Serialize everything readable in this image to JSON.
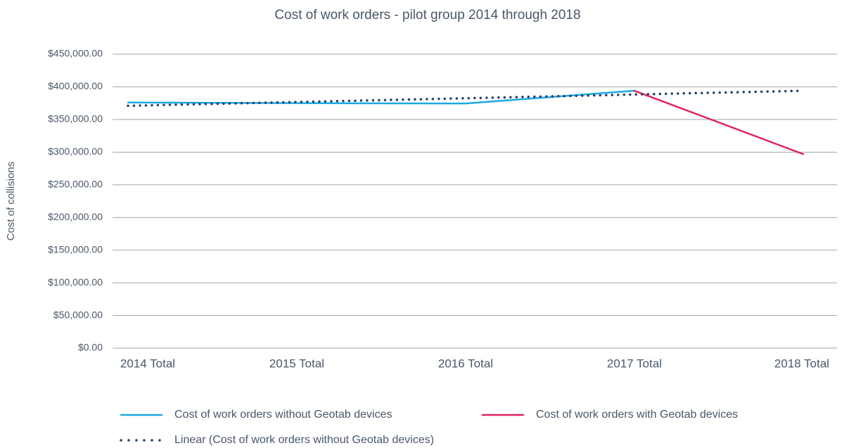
{
  "chart_data": {
    "type": "line",
    "title": "Cost of work orders - pilot group 2014 through 2018",
    "y_label": "Cost of collisions",
    "categories": [
      "2014 Total",
      "2015 Total",
      "2016 Total",
      "2017 Total",
      "2018 Total"
    ],
    "series": [
      {
        "name": "Cost of work orders without Geotab devices",
        "color": "#1ba9e1",
        "style": "solid",
        "values": [
          376000,
          375000,
          374500,
          394000,
          null
        ]
      },
      {
        "name": "Cost of work orders with Geotab devices",
        "color": "#e0245e",
        "style": "solid",
        "values": [
          null,
          null,
          null,
          394000,
          297000
        ]
      },
      {
        "name": "Linear (Cost of work orders without Geotab devices)",
        "color": "#243f6b",
        "style": "dotted",
        "values": [
          371000,
          376750,
          382500,
          388250,
          394000
        ]
      }
    ],
    "ylim": [
      0,
      450000
    ],
    "yticks": [
      {
        "value": 0,
        "label": "$0.00"
      },
      {
        "value": 50000,
        "label": "$50,000.00"
      },
      {
        "value": 100000,
        "label": "$100,000.00"
      },
      {
        "value": 150000,
        "label": "$150,000.00"
      },
      {
        "value": 200000,
        "label": "$200,000.00"
      },
      {
        "value": 250000,
        "label": "$250,000.00"
      },
      {
        "value": 300000,
        "label": "$300,000.00"
      },
      {
        "value": 350000,
        "label": "$350,000.00"
      },
      {
        "value": 400000,
        "label": "$400,000.00"
      },
      {
        "value": 450000,
        "label": "$450,000.00"
      }
    ],
    "grid": true
  }
}
